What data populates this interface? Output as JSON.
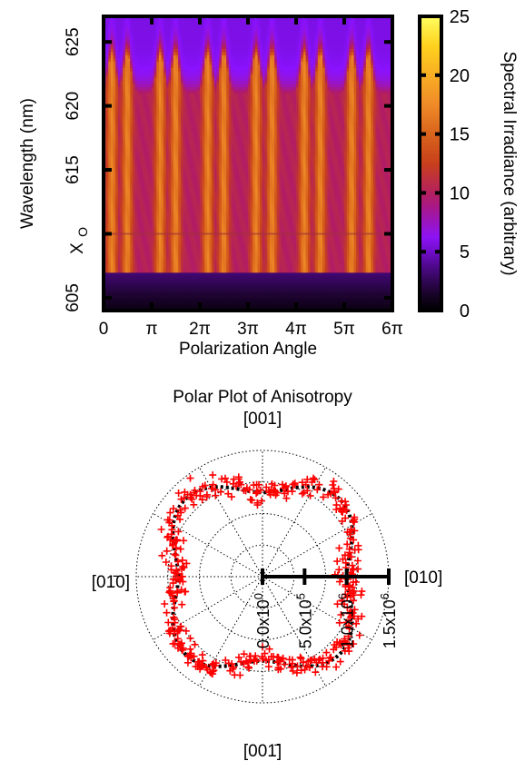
{
  "colors": {
    "heatmap_scale": [
      "#000000",
      "#1e0432",
      "#5a0aa0",
      "#8a12ff",
      "#b01a6a",
      "#c8401c",
      "#d8641c",
      "#f08a28",
      "#ffd21e",
      "#ffff60"
    ],
    "fit_line": "#000000",
    "scatter": "#ff0000",
    "grid": "#000000"
  },
  "chart_data": [
    {
      "type": "heatmap",
      "xlabel": "Polarization Angle",
      "ylabel": "Wavelength (nm)",
      "extra_ylabel": "X",
      "extra_ylabel_sub": "O",
      "extra_y_value": 610,
      "xlim": [
        0,
        18.85
      ],
      "ylim": [
        604,
        627
      ],
      "x_ticks": [
        {
          "value": 0,
          "label": "0"
        },
        {
          "value": 3.1416,
          "label": "π"
        },
        {
          "value": 6.2832,
          "label": "2π"
        },
        {
          "value": 9.4248,
          "label": "3π"
        },
        {
          "value": 12.566,
          "label": "4π"
        },
        {
          "value": 15.708,
          "label": "5π"
        },
        {
          "value": 18.85,
          "label": "6π"
        }
      ],
      "y_ticks": [
        {
          "value": 605,
          "label": "605"
        },
        {
          "value": 610,
          "label": ""
        },
        {
          "value": 615,
          "label": "615"
        },
        {
          "value": 620,
          "label": "620"
        },
        {
          "value": 625,
          "label": "625"
        }
      ],
      "colorbar": {
        "label": "Spectral Irradiance (arbitrary)",
        "range": [
          0,
          25
        ],
        "ticks": [
          {
            "value": 0,
            "label": "0"
          },
          {
            "value": 5,
            "label": "5"
          },
          {
            "value": 10,
            "label": "10"
          },
          {
            "value": 15,
            "label": "15"
          },
          {
            "value": 20,
            "label": "20"
          },
          {
            "value": 25,
            "label": "25"
          }
        ]
      },
      "stripe_peaks": [
        0.55,
        1.55,
        3.7,
        4.7,
        6.8,
        7.85,
        9.95,
        11.0,
        13.1,
        14.15,
        16.2,
        17.3
      ],
      "stripe_peak_value": 17,
      "valley_value": 10,
      "cutoff_wavelength": 607,
      "plateau_top_wavelength": 621,
      "background_value": 5.5
    },
    {
      "type": "scatter",
      "title": "Polar Plot of Anisotropy",
      "direction_labels": {
        "top": "[001]",
        "bottom": "[001̄]",
        "left": "[01̄0]",
        "right": "[010]"
      },
      "r_max": 1500000,
      "radial_ticks": [
        {
          "value": 0,
          "label": "0.0x10^0"
        },
        {
          "value": 500000,
          "label": "5.0x10^5"
        },
        {
          "value": 1000000,
          "label": "1.0x10^6"
        },
        {
          "value": 1500000,
          "label": "1.5x10^6"
        }
      ],
      "grid_circles": [
        375000,
        750000,
        1125000,
        1500000
      ],
      "grid_spoke_step_deg": 30,
      "fit_curve": {
        "series": "fit",
        "base_r": 1150000,
        "amplitude": 150000,
        "harmonic": 4,
        "phase_deg": 45
      },
      "scatter_model": {
        "n_points": 420,
        "base_r": 1150000,
        "amplitude": 140000,
        "harmonic": 4,
        "phase_deg": 45,
        "noise": 70000
      },
      "marker": "+"
    }
  ]
}
